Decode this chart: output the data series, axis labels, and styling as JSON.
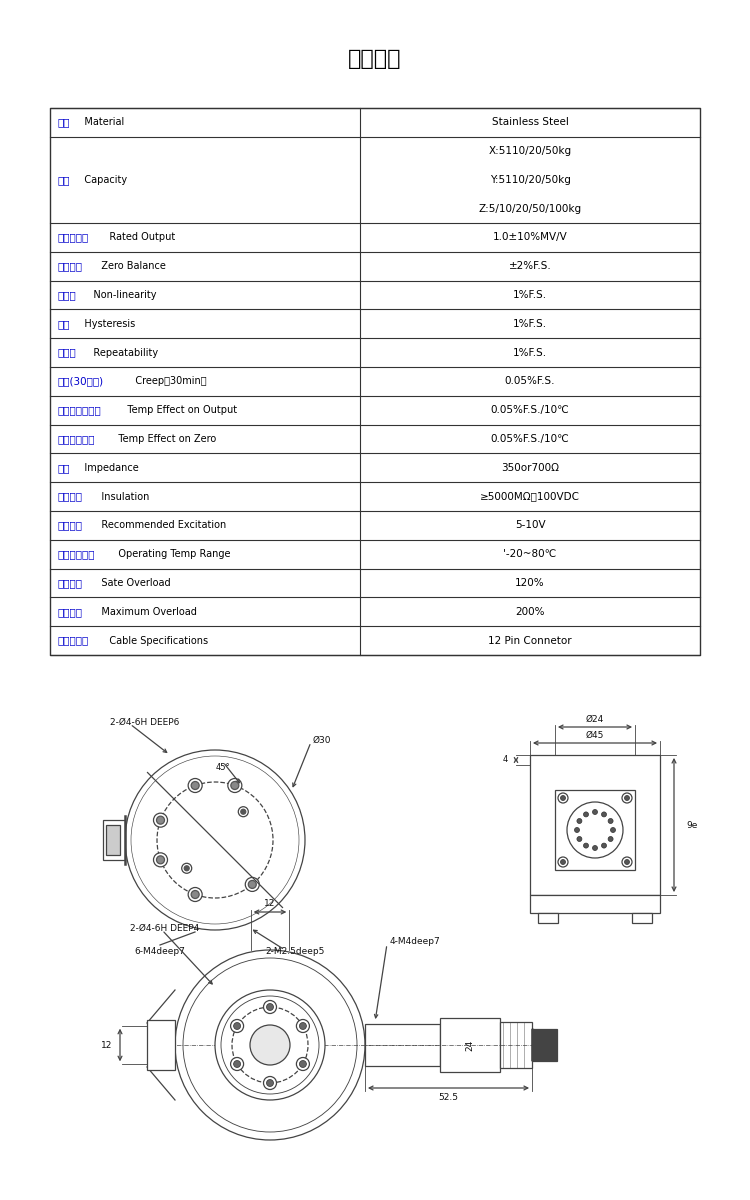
{
  "title": "产品参数",
  "title_fontsize": 16,
  "table_rows": [
    [
      "材质   Material",
      "Stainless Steel",
      1
    ],
    [
      "量程   Capacity",
      "X:5110/20/50kg\nY:5110/20/50kg\nZ:5/10/20/50/100kg",
      3
    ],
    [
      "输出灵敏度   Rated Output",
      "1.0±10%MV/V",
      1
    ],
    [
      "零点输出   Zero Balance",
      "±2%F.S.",
      1
    ],
    [
      "非线性   Non-linearity",
      "1%F.S.",
      1
    ],
    [
      "滞后   Hysteresis",
      "1%F.S.",
      1
    ],
    [
      "重复性   Repeatability",
      "1%F.S.",
      1
    ],
    [
      "蠕变(30分钟)   Creep（30min）",
      "0.05%F.S.",
      1
    ],
    [
      "温度灵敏度漂移   Temp Effect on Output",
      "0.05%F.S./10℃",
      1
    ],
    [
      "零点温度漂移   Temp Effect on Zero",
      "0.05%F.S./10℃",
      1
    ],
    [
      "阻抗   Impedance",
      "350or700Ω",
      1
    ],
    [
      "绝缘电阻   Insulation",
      "≥5000MΩ、100VDC",
      1
    ],
    [
      "使用电压   Recommended Excitation",
      "5-10V",
      1
    ],
    [
      "工作温度范围   Operating Temp Range",
      "'-20~80℃",
      1
    ],
    [
      "安全过载   Sate Overload",
      "120%",
      1
    ],
    [
      "极限过载   Maximum Overload",
      "200%",
      1
    ],
    [
      "电缆线规格   Cable Specifications",
      "12 Pin Connetor",
      1
    ]
  ],
  "bg": "#ffffff",
  "border": "#333333",
  "chinese_color": "#0000cc",
  "english_color": "#000000",
  "value_color": "#000000",
  "lc": "#444444",
  "lw": 0.9
}
